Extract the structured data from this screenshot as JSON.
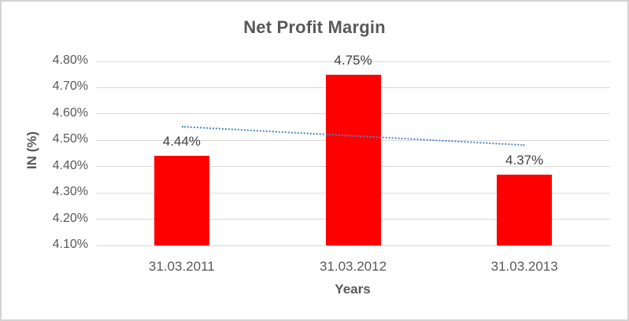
{
  "chart_data": {
    "type": "bar",
    "title": "Net Profit Margin",
    "xlabel": "Years",
    "ylabel": "IN (%)",
    "categories": [
      "31.03.2011",
      "31.03.2012",
      "31.03.2013"
    ],
    "values": [
      4.44,
      4.75,
      4.37
    ],
    "value_labels": [
      "4.44%",
      "4.75%",
      "4.37%"
    ],
    "ylim": [
      4.1,
      4.8
    ],
    "yticks": [
      {
        "value": 4.8,
        "label": "4.80%"
      },
      {
        "value": 4.7,
        "label": "4.70%"
      },
      {
        "value": 4.6,
        "label": "4.60%"
      },
      {
        "value": 4.5,
        "label": "4.50%"
      },
      {
        "value": 4.4,
        "label": "4.40%"
      },
      {
        "value": 4.3,
        "label": "4.30%"
      },
      {
        "value": 4.2,
        "label": "4.20%"
      },
      {
        "value": 4.1,
        "label": "4.10%"
      }
    ],
    "grid": true,
    "legend": "none",
    "bar_color": "#FF0000",
    "gridline_color": "#D9D9D9",
    "text_color": "#595959",
    "data_label_color": "#404040",
    "trendline": {
      "type": "linear",
      "style": "dotted",
      "color": "#4A86C8",
      "y_start": 4.555,
      "y_end": 4.485
    }
  }
}
